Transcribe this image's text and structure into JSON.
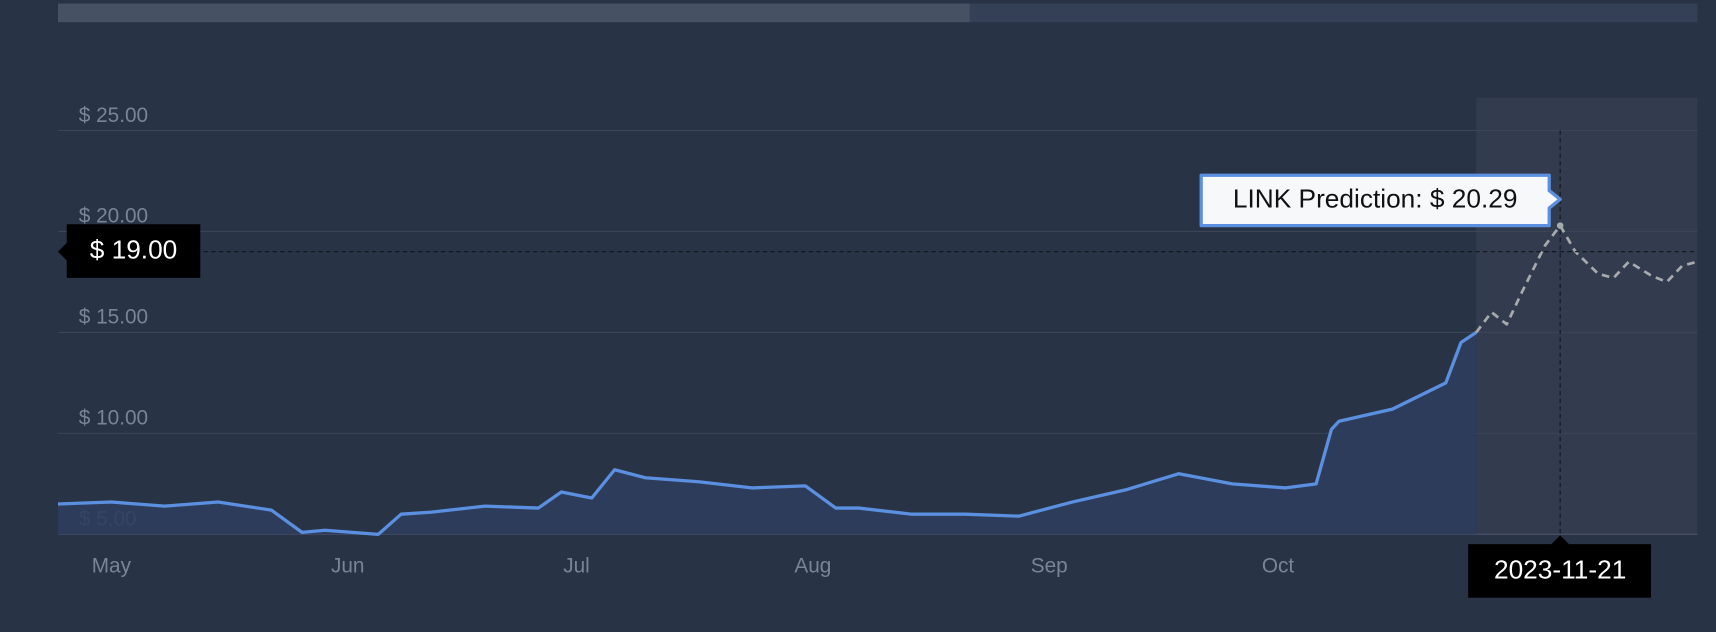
{
  "chart_data": {
    "type": "line",
    "xlim": [
      "2023-05-08",
      "2023-12-09"
    ],
    "xticks": [
      {
        "value": "2023-05-15",
        "label": "May"
      },
      {
        "value": "2023-06-15",
        "label": "Jun"
      },
      {
        "value": "2023-07-15",
        "label": "Jul"
      },
      {
        "value": "2023-08-15",
        "label": "Aug"
      },
      {
        "value": "2023-09-15",
        "label": "Sep"
      },
      {
        "value": "2023-10-15",
        "label": "Oct"
      }
    ],
    "ylim": [
      5,
      25
    ],
    "yticks": [
      {
        "value": 5,
        "label": "$ 5.00"
      },
      {
        "value": 10,
        "label": "$ 10.00"
      },
      {
        "value": 15,
        "label": "$ 15.00"
      },
      {
        "value": 20,
        "label": "$ 20.00"
      },
      {
        "value": 25,
        "label": "$ 25.00"
      }
    ],
    "grid": true,
    "series": [
      {
        "color": "#5b8fe0",
        "dashed": false,
        "x": [
          "2023-05-08",
          "2023-05-15",
          "2023-05-22",
          "2023-05-29",
          "2023-06-05",
          "2023-06-09",
          "2023-06-12",
          "2023-06-19",
          "2023-06-22",
          "2023-06-26",
          "2023-07-03",
          "2023-07-10",
          "2023-07-13",
          "2023-07-17",
          "2023-07-20",
          "2023-07-24",
          "2023-07-31",
          "2023-08-07",
          "2023-08-14",
          "2023-08-18",
          "2023-08-21",
          "2023-08-28",
          "2023-09-04",
          "2023-09-11",
          "2023-09-18",
          "2023-09-25",
          "2023-10-02",
          "2023-10-09",
          "2023-10-16",
          "2023-10-20",
          "2023-10-22",
          "2023-10-23",
          "2023-10-30",
          "2023-11-06",
          "2023-11-08",
          "2023-11-10"
        ],
        "values": [
          6.5,
          6.6,
          6.4,
          6.6,
          6.2,
          5.1,
          5.2,
          5.0,
          6.0,
          6.1,
          6.4,
          6.3,
          7.1,
          6.8,
          8.2,
          7.8,
          7.6,
          7.3,
          7.4,
          6.3,
          6.3,
          6.0,
          6.0,
          5.9,
          6.6,
          7.2,
          8.0,
          7.5,
          7.3,
          7.5,
          10.2,
          10.6,
          11.2,
          12.5,
          14.5,
          15.0
        ]
      },
      {
        "color": "#a7a9ad",
        "dashed": true,
        "x": [
          "2023-11-10",
          "2023-11-12",
          "2023-11-14",
          "2023-11-16",
          "2023-11-19",
          "2023-11-21",
          "2023-11-23",
          "2023-11-26",
          "2023-11-28",
          "2023-11-30",
          "2023-12-03",
          "2023-12-05",
          "2023-12-07",
          "2023-12-09"
        ],
        "values": [
          15.0,
          16.0,
          15.4,
          17.0,
          19.3,
          20.29,
          19.0,
          17.9,
          17.7,
          18.5,
          17.8,
          17.5,
          18.3,
          18.5
        ]
      }
    ],
    "crosshair": {
      "y": {
        "value": 19,
        "label": "$ 19.00"
      },
      "x": {
        "value": "2023-11-21",
        "label": "2023-11-21"
      }
    },
    "tooltip": {
      "text": "LINK Prediction: $ 20.29",
      "series": 1,
      "index": 5
    }
  }
}
